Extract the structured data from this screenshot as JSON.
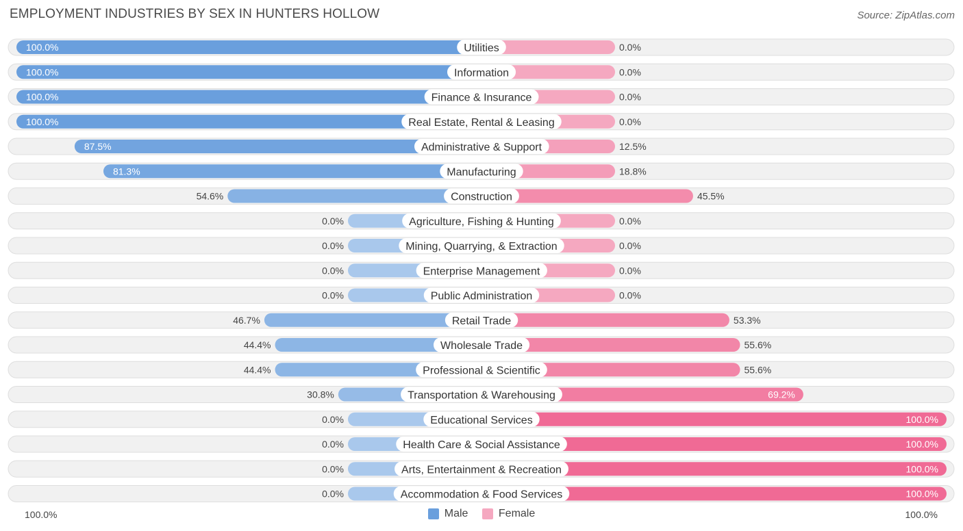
{
  "title": "EMPLOYMENT INDUSTRIES BY SEX IN HUNTERS HOLLOW",
  "source": "Source: ZipAtlas.com",
  "colors": {
    "male_strong": "#6a9fdd",
    "male_light": "#a9c8ec",
    "female_strong": "#f06a95",
    "female_light": "#f5a8c0"
  },
  "legend": {
    "male": "Male",
    "female": "Female"
  },
  "axis": {
    "left": "100.0%",
    "right": "100.0%"
  },
  "chart_data": {
    "type": "bar",
    "orientation": "horizontal-diverging",
    "title": "EMPLOYMENT INDUSTRIES BY SEX IN HUNTERS HOLLOW",
    "categories": [
      "Utilities",
      "Information",
      "Finance & Insurance",
      "Real Estate, Rental & Leasing",
      "Administrative & Support",
      "Manufacturing",
      "Construction",
      "Agriculture, Fishing & Hunting",
      "Mining, Quarrying, & Extraction",
      "Enterprise Management",
      "Public Administration",
      "Retail Trade",
      "Wholesale Trade",
      "Professional & Scientific",
      "Transportation & Warehousing",
      "Educational Services",
      "Health Care & Social Assistance",
      "Arts, Entertainment & Recreation",
      "Accommodation & Food Services"
    ],
    "series": [
      {
        "name": "Male",
        "values": [
          100.0,
          100.0,
          100.0,
          100.0,
          87.5,
          81.3,
          54.6,
          0.0,
          0.0,
          0.0,
          0.0,
          46.7,
          44.4,
          44.4,
          30.8,
          0.0,
          0.0,
          0.0,
          0.0
        ],
        "labels": [
          "100.0%",
          "100.0%",
          "100.0%",
          "100.0%",
          "87.5%",
          "81.3%",
          "54.6%",
          "0.0%",
          "0.0%",
          "0.0%",
          "0.0%",
          "46.7%",
          "44.4%",
          "44.4%",
          "30.8%",
          "0.0%",
          "0.0%",
          "0.0%",
          "0.0%"
        ]
      },
      {
        "name": "Female",
        "values": [
          0.0,
          0.0,
          0.0,
          0.0,
          12.5,
          18.8,
          45.5,
          0.0,
          0.0,
          0.0,
          0.0,
          53.3,
          55.6,
          55.6,
          69.2,
          100.0,
          100.0,
          100.0,
          100.0
        ],
        "labels": [
          "0.0%",
          "0.0%",
          "0.0%",
          "0.0%",
          "12.5%",
          "18.8%",
          "45.5%",
          "0.0%",
          "0.0%",
          "0.0%",
          "0.0%",
          "53.3%",
          "55.6%",
          "55.6%",
          "69.2%",
          "100.0%",
          "100.0%",
          "100.0%",
          "100.0%"
        ]
      }
    ],
    "xlim": [
      -100,
      100
    ],
    "legend_position": "bottom-center"
  }
}
